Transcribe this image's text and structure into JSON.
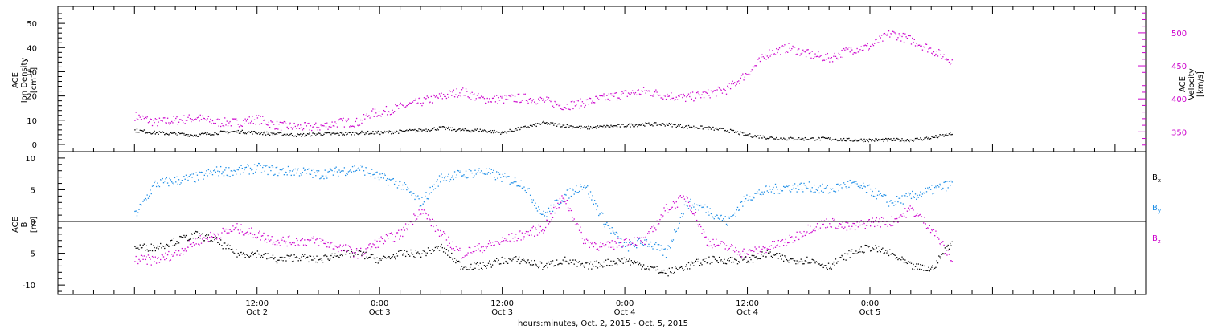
{
  "chart_data": [
    {
      "type": "scatter",
      "title": "",
      "ylabel_left": [
        "ACE",
        "Ion Density",
        "[cm⁻³]"
      ],
      "ylabel_right": [
        "ACE",
        "Velocity",
        "[km/s]"
      ],
      "ylim": [
        -3,
        57
      ],
      "yticks": [
        0,
        10,
        20,
        30,
        40,
        50
      ],
      "ylim_right": [
        320,
        540
      ],
      "yticks_right": [
        350,
        400,
        450,
        500
      ],
      "colors": {
        "density": "#000000",
        "velocity": "#cc00cc",
        "axis_right": "#cc00cc"
      },
      "series": [
        {
          "name": "Ion Density",
          "x": [
            0,
            2,
            4,
            6,
            8,
            10,
            12,
            14,
            16,
            18,
            20,
            22,
            24,
            26,
            28,
            30,
            32,
            34,
            36,
            38,
            40,
            42,
            44,
            46,
            48,
            50,
            52,
            54,
            56,
            58,
            60,
            62,
            64,
            66,
            68,
            70,
            72,
            74,
            76,
            78,
            80
          ],
          "y": [
            6,
            5,
            4.5,
            4,
            5,
            5.5,
            5,
            4.5,
            4,
            4.5,
            4.5,
            5,
            5,
            5.5,
            6,
            7,
            6,
            6,
            5,
            7,
            9,
            8,
            7,
            7.5,
            8,
            8.5,
            8.5,
            7.5,
            7,
            6,
            4,
            3,
            2.5,
            2.5,
            2.5,
            2,
            2,
            2,
            2,
            3,
            4.5
          ]
        },
        {
          "name": "Velocity",
          "x": [
            0,
            2,
            4,
            6,
            8,
            10,
            12,
            14,
            16,
            18,
            20,
            22,
            23,
            24,
            26,
            28,
            30,
            32,
            34,
            36,
            38,
            40,
            42,
            44,
            46,
            48,
            50,
            52,
            54,
            56,
            58,
            60,
            62,
            64,
            66,
            68,
            70,
            72,
            74,
            76,
            78,
            80
          ],
          "y": [
            375,
            365,
            368,
            372,
            365,
            365,
            370,
            360,
            358,
            358,
            365,
            365,
            378,
            380,
            388,
            396,
            404,
            412,
            400,
            400,
            402,
            398,
            390,
            395,
            402,
            408,
            412,
            406,
            402,
            408,
            415,
            440,
            470,
            478,
            468,
            462,
            475,
            480,
            500,
            490,
            475,
            458
          ]
        }
      ]
    },
    {
      "type": "scatter",
      "ylabel_left": [
        "ACE",
        "B",
        "[nT]"
      ],
      "ylim": [
        -11.5,
        11
      ],
      "yticks": [
        -10,
        -5,
        0,
        5,
        10
      ],
      "legend": [
        {
          "label": "B",
          "sub": "x",
          "color": "#000000"
        },
        {
          "label": "B",
          "sub": "y",
          "color": "#1a8ce6"
        },
        {
          "label": "B",
          "sub": "z",
          "color": "#cc00cc"
        }
      ],
      "series": [
        {
          "name": "Bx",
          "x": [
            0,
            2,
            4,
            6,
            8,
            10,
            12,
            14,
            16,
            18,
            20,
            22,
            24,
            26,
            28,
            30,
            32,
            34,
            36,
            38,
            40,
            42,
            44,
            46,
            48,
            50,
            52,
            54,
            56,
            58,
            60,
            62,
            64,
            66,
            68,
            70,
            72,
            74,
            76,
            78,
            80
          ],
          "y": [
            -4,
            -4,
            -3,
            -2,
            -3,
            -5,
            -5,
            -6,
            -5.5,
            -6,
            -5,
            -5,
            -6,
            -5,
            -5,
            -4,
            -7,
            -7,
            -6,
            -6,
            -7,
            -6,
            -7,
            -6.5,
            -6,
            -7,
            -8,
            -7,
            -6,
            -6,
            -6,
            -5,
            -6,
            -6,
            -7,
            -5,
            -4,
            -5,
            -7,
            -7.5,
            -3
          ]
        },
        {
          "name": "By",
          "x": [
            0,
            2,
            4,
            6,
            8,
            10,
            12,
            14,
            16,
            18,
            20,
            22,
            24,
            26,
            28,
            30,
            32,
            34,
            36,
            38,
            40,
            42,
            44,
            46,
            48,
            50,
            52,
            54,
            56,
            58,
            60,
            62,
            64,
            66,
            68,
            70,
            72,
            74,
            76,
            78,
            80
          ],
          "y": [
            1,
            6,
            6.5,
            7,
            8,
            8,
            8.5,
            8,
            8,
            7.5,
            8,
            8.5,
            7,
            6,
            3,
            7,
            7.5,
            8,
            7,
            6,
            1,
            4,
            6,
            0,
            -4,
            -3,
            -5,
            3,
            2,
            0,
            4,
            5,
            5.5,
            5.5,
            5,
            6,
            5,
            3,
            4,
            5,
            6
          ]
        },
        {
          "name": "Bz",
          "x": [
            0,
            2,
            4,
            6,
            8,
            10,
            12,
            14,
            16,
            18,
            20,
            22,
            24,
            26,
            28,
            30,
            32,
            34,
            36,
            38,
            40,
            42,
            44,
            46,
            48,
            50,
            52,
            54,
            56,
            58,
            60,
            62,
            64,
            66,
            68,
            70,
            72,
            74,
            76,
            78,
            80
          ],
          "y": [
            -6,
            -6,
            -5,
            -3,
            -2,
            -1,
            -2,
            -3,
            -3,
            -3,
            -4,
            -5,
            -3,
            -2,
            2,
            -2,
            -5,
            -4,
            -3,
            -2,
            -1,
            4,
            -3,
            -4,
            -3,
            -3,
            2,
            4,
            -3,
            -4,
            -5,
            -4,
            -3,
            -1,
            0,
            -1,
            0,
            0,
            2,
            -1,
            -6
          ]
        }
      ]
    }
  ],
  "xaxis": {
    "range_hours": [
      -7.5,
      99
    ],
    "ticks": [
      {
        "h": 12,
        "l1": "12:00",
        "l2": "Oct 2"
      },
      {
        "h": 24,
        "l1": "0:00",
        "l2": "Oct 3"
      },
      {
        "h": 36,
        "l1": "12:00",
        "l2": "Oct 3"
      },
      {
        "h": 48,
        "l1": "0:00",
        "l2": "Oct 4"
      },
      {
        "h": 60,
        "l1": "12:00",
        "l2": "Oct 4"
      },
      {
        "h": 72,
        "l1": "0:00",
        "l2": "Oct 5"
      }
    ],
    "label": "hours:minutes, Oct.  2, 2015 - Oct.  5, 2015"
  }
}
